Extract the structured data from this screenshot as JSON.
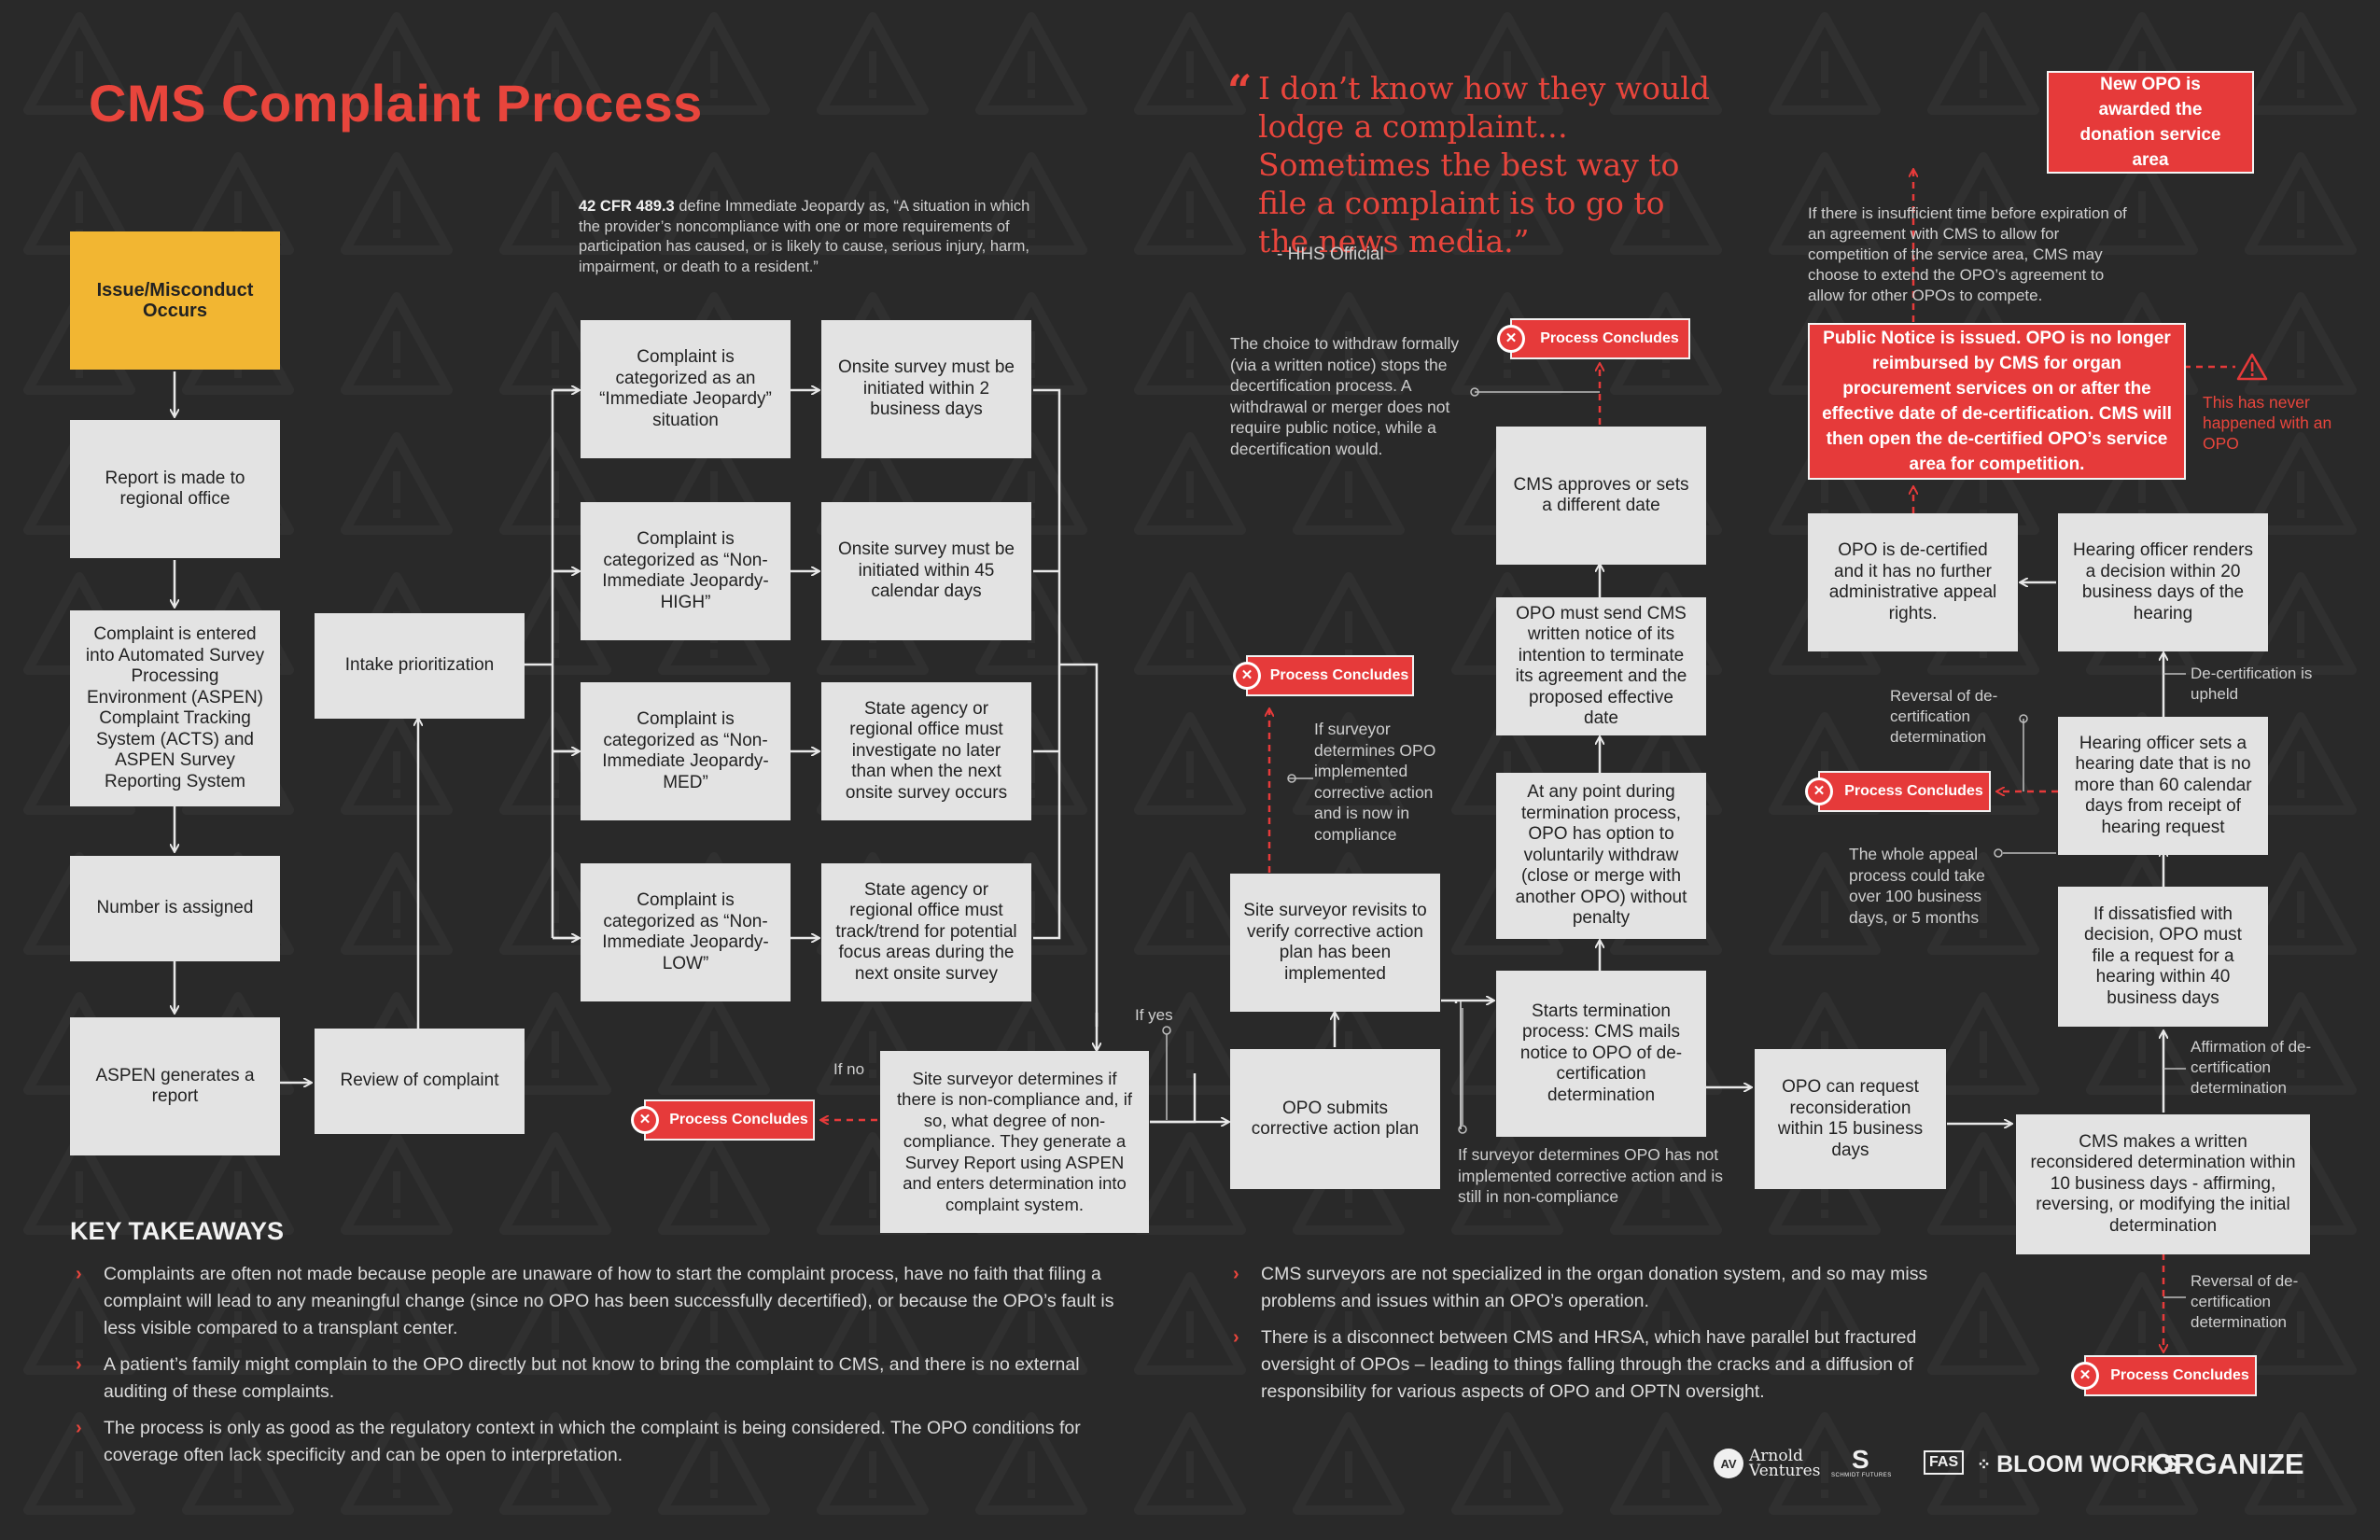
{
  "title": "CMS Complaint Process",
  "quote": {
    "text": "I don’t know how they would lodge a complaint…Sometimes the best way to file a complaint is to go to the news media.”",
    "open_mark": "“",
    "attribution": "- HHS Official"
  },
  "definition_note": {
    "ref": "42 CFR 489.3",
    "text": "define Immediate Jeopardy as, “A situation in which the provider’s noncompliance with one or more requirements of participation has caused, or is likely to cause, serious injury, harm, impairment, or death to a resident.”"
  },
  "nodes": {
    "issue": "Issue/Misconduct Occurs",
    "report": "Report is made to regional office",
    "entered": "Complaint is entered into Automated Survey Processing Environment (ASPEN) Complaint Tracking System (ACTS) and ASPEN Survey Reporting System",
    "number": "Number is assigned",
    "aspen_report": "ASPEN generates a report",
    "review": "Review of complaint",
    "intake": "Intake prioritization",
    "cat_ij": "Complaint is categorized as an “Immediate Jeopardy” situation",
    "cat_high": "Complaint is categorized as “Non-Immediate Jeopardy-HIGH”",
    "cat_med": "Complaint is categorized as “Non-Immediate Jeopardy-MED”",
    "cat_low": "Complaint is categorized as “Non-Immediate Jeopardy-LOW”",
    "onsite_2": "Onsite survey must be initiated within 2 business days",
    "onsite_45": "Onsite survey must be initiated within 45 calendar days",
    "state_med": "State agency or regional office must investigate no later than when the next onsite survey occurs",
    "state_low": "State agency or regional office must track/trend for potential focus areas during the next onsite survey",
    "surveyor_det": "Site surveyor determines if there is non-compliance and, if so, what degree of non-compliance. They generate a Survey Report using ASPEN and enters determination into complaint system.",
    "opo_plan": "OPO submits corrective action plan",
    "revisit": "Site surveyor revisits to verify corrective action plan has been implemented",
    "termination": "Starts termination process: CMS mails notice to OPO of de-certification determination",
    "withdraw": "At any point during termination process, OPO has option to voluntarily withdraw (close or merge with another OPO) without penalty",
    "written_notice": "OPO must send CMS written notice of its intention to terminate its agreement and the proposed effective date",
    "cms_approves": "CMS approves or sets a different date",
    "reconsider": "OPO can request reconsideration within 15 business days",
    "cms_reconsidered": "CMS makes a written reconsidered determination within 10 business days - affirming, reversing, or modifying the initial determination",
    "dissatisfied": "If dissatisfied with decision, OPO must file a request for a hearing within 40 business days",
    "hearing_date": "Hearing officer sets a hearing date that is no more than 60 calendar days from receipt of hearing request",
    "hearing_decision": "Hearing officer renders a decision within 20 business days of the hearing",
    "decertified": "OPO is de-certified and it has no further administrative appeal rights.",
    "public_notice": "Public Notice is issued. OPO is no longer reimbursed by CMS for organ procurement services on or after the effective date of de-certification. CMS will then open the de-certified OPO’s service area for competition.",
    "new_opo": "New OPO is awarded the donation service area"
  },
  "concludes_label": "Process Concludes",
  "labels": {
    "if_no": "If no",
    "if_yes": "If yes",
    "decert_upheld": "De-certification is upheld",
    "affirmation": "Affirmation of de-certification determination",
    "reversal_top": "Reversal of de-certification determination",
    "reversal_bottom": "Reversal of de-certification determination"
  },
  "notes": {
    "withdraw_note": "The choice to withdraw formally (via a written notice) stops the decertification process. A withdrawal or merger does not require public notice, while a decertification would.",
    "compliance_note": "If surveyor determines OPO implemented corrective action and is now in compliance",
    "noncompliance_note": "If surveyor determines OPO has not implemented corrective action and is still in non-compliance",
    "appeal_note": "The whole appeal process could take over 100 business days, or 5 months",
    "extension_note": "If there is insufficient time before expiration of an agreement with CMS to allow for competition of the service area, CMS may choose to extend the OPO’s agreement to allow for other OPOs to compete.",
    "never_happened": "This has never happened with an OPO"
  },
  "takeaways": {
    "heading": "KEY TAKEAWAYS",
    "left": [
      "Complaints are often not made because people are unaware of how to start the complaint process, have no faith that filing a complaint will lead to any meaningful change (since no OPO has been successfully decertified), or because the OPO’s fault is less visible compared to a transplant center.",
      "A patient’s family might complain to the OPO directly but not know to bring the complaint to CMS, and there is no external auditing of these complaints.",
      "The process is only as good as the regulatory context in which the complaint is being considered. The OPO conditions for coverage often lack specificity and can be open to interpretation."
    ],
    "right": [
      "CMS surveyors are not specialized in the organ donation system, and so may miss problems and issues within an OPO’s operation.",
      "There is a disconnect between CMS and HRSA, which have parallel but fractured oversight of OPOs – leading to things falling through the cracks and a diffusion of responsibility for various aspects of OPO and OPTN oversight."
    ],
    "bullet": "›"
  },
  "logos": {
    "arnold_mark": "AV",
    "arnold_1": "Arnold",
    "arnold_2": "Ventures",
    "schmidt_mark": "S",
    "schmidt": "SCHMIDT FUTURES",
    "fas": "FAS",
    "bloom": "BLOOM WORKS",
    "organize": "ORGANIZE"
  },
  "colors": {
    "background": "#292929",
    "accent_red": "#e63a3a",
    "title_red": "#e8453c",
    "yellow": "#f2b632",
    "box": "#e3e3e3"
  }
}
